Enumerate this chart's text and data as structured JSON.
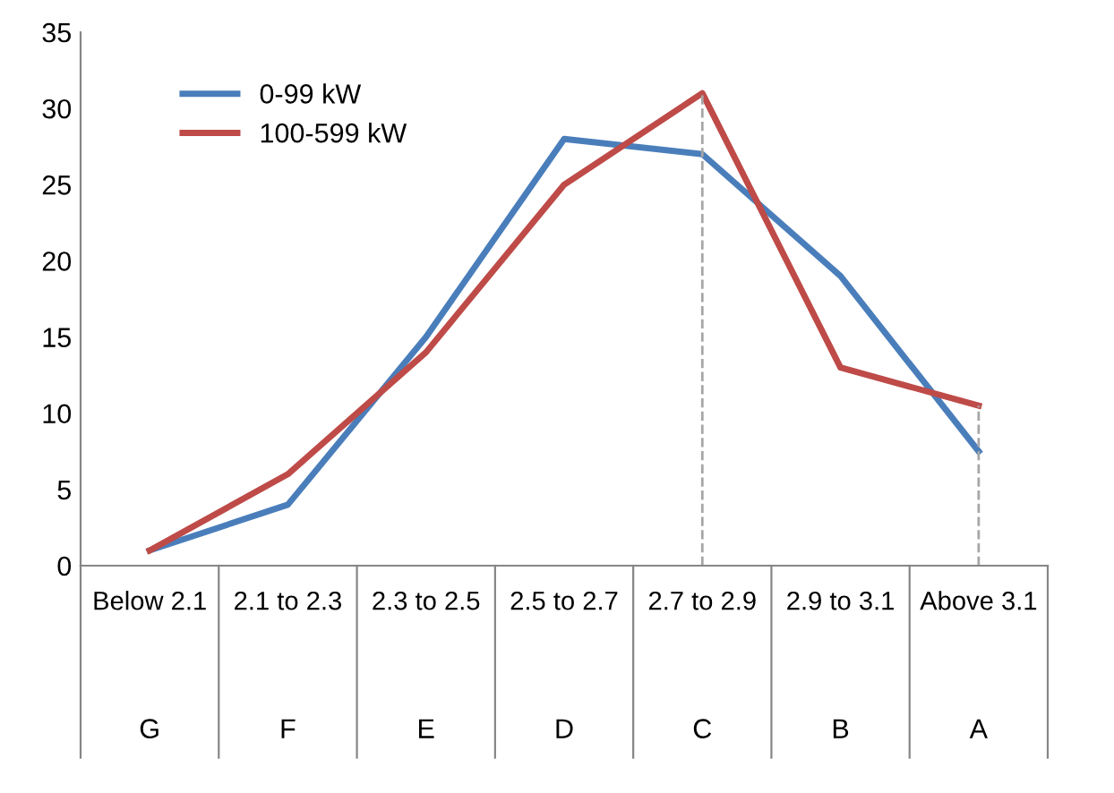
{
  "chart_data": {
    "type": "line",
    "categories": [
      "Below 2.1",
      "2.1 to 2.3",
      "2.3 to 2.5",
      "2.5 to 2.7",
      "2.7 to 2.9",
      "2.9 to 3.1",
      "Above 3.1"
    ],
    "series": [
      {
        "name": "0-99 kW",
        "color": "#4a7ebb",
        "values": [
          1,
          4,
          15,
          28,
          27,
          19,
          7.5
        ]
      },
      {
        "name": "100-599 kW",
        "color": "#be4b48",
        "values": [
          1,
          6,
          14,
          25,
          31,
          13,
          10.5
        ]
      }
    ],
    "ylim": [
      0,
      35
    ],
    "yticks": [
      0,
      5,
      10,
      15,
      20,
      25,
      30,
      35
    ],
    "grid": false,
    "legend": "top left",
    "marker": "none",
    "line_style": "solid",
    "ref_lines": [
      {
        "axis": "x",
        "value": "2.7 to 2.9",
        "color": "#a6a6a6",
        "line_style": "dashed"
      },
      {
        "axis": "x",
        "value": "Above 3.1",
        "color": "#a6a6a6",
        "line_style": "dashed"
      }
    ],
    "annotations": [
      "G",
      "F",
      "E",
      "D",
      "C",
      "B",
      "A"
    ]
  }
}
